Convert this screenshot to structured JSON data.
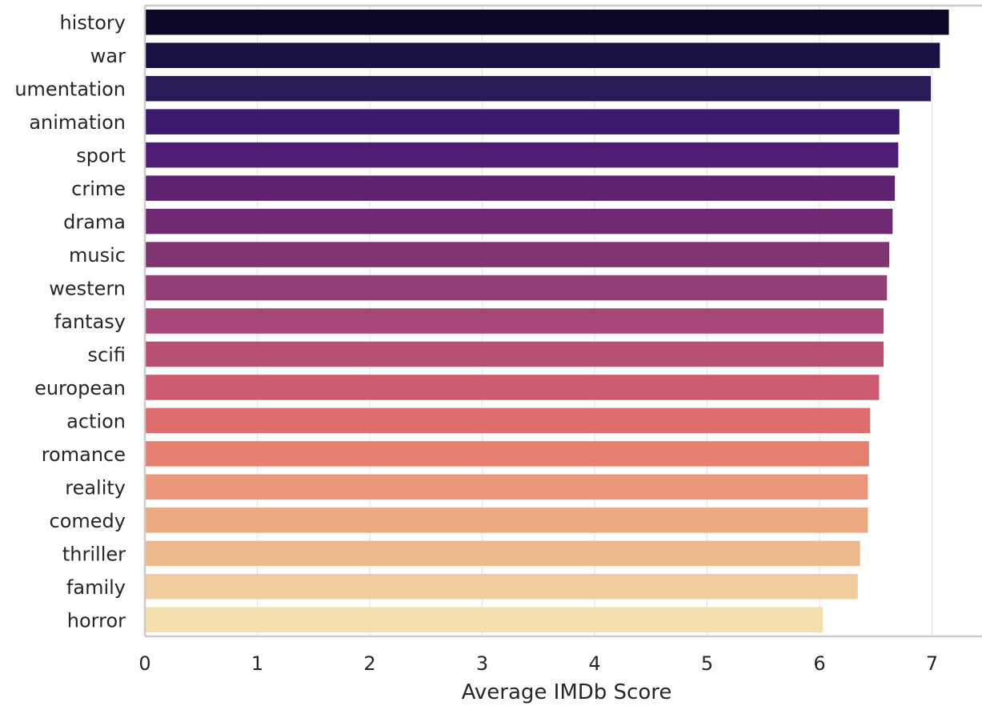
{
  "chart_data": {
    "type": "bar",
    "orientation": "horizontal",
    "xlabel": "Average IMDb Score",
    "ylabel": "",
    "xlim": [
      0,
      7.3
    ],
    "xticks": [
      "0",
      "1",
      "2",
      "3",
      "4",
      "5",
      "6",
      "7"
    ],
    "grid": true,
    "categories": [
      "history",
      "war",
      "umentation",
      "animation",
      "sport",
      "crime",
      "drama",
      "music",
      "western",
      "fantasy",
      "scifi",
      "european",
      "action",
      "romance",
      "reality",
      "comedy",
      "thriller",
      "family",
      "horror"
    ],
    "values": [
      7.15,
      7.07,
      6.99,
      6.71,
      6.7,
      6.67,
      6.65,
      6.62,
      6.6,
      6.57,
      6.57,
      6.53,
      6.45,
      6.44,
      6.43,
      6.43,
      6.36,
      6.34,
      6.03
    ],
    "colors": [
      "#0c0926",
      "#1a1042",
      "#2b1a58",
      "#3b1b6e",
      "#4e1c74",
      "#5f2272",
      "#6f2a73",
      "#803572",
      "#923e74",
      "#a54676",
      "#b84f74",
      "#cc5b72",
      "#dc6d6c",
      "#e58070",
      "#e9967a",
      "#eda97f",
      "#efb98e",
      "#f1cc9c",
      "#f3e0ae"
    ]
  }
}
